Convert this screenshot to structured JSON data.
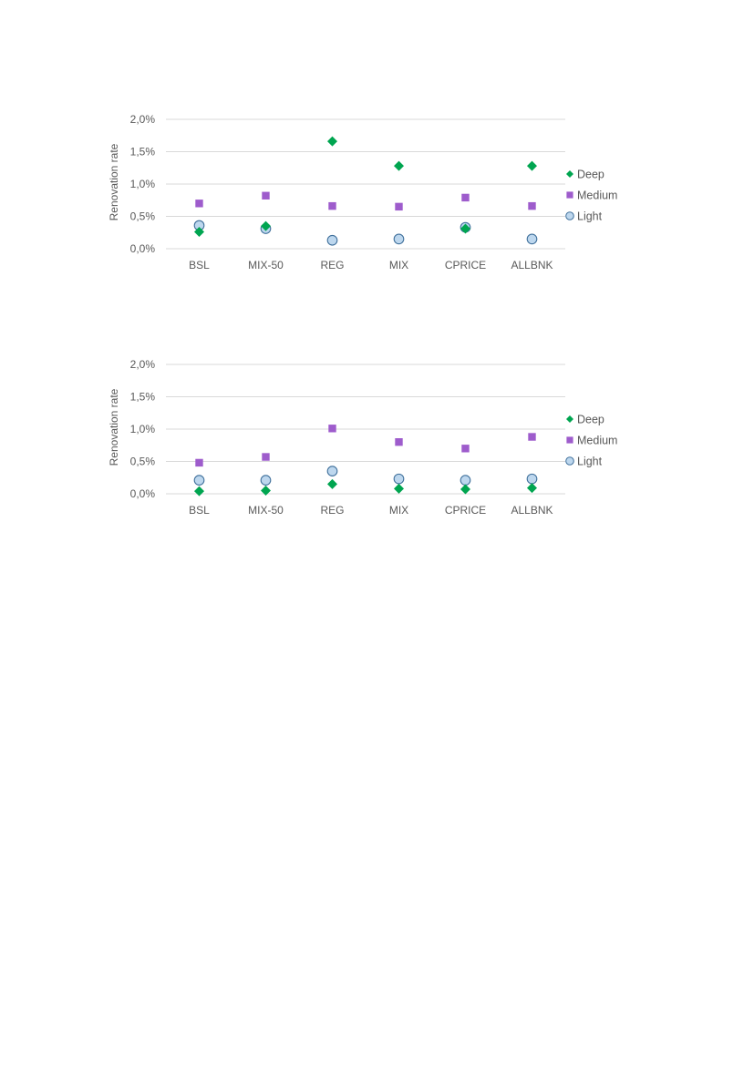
{
  "chart_data": [
    {
      "type": "scatter",
      "ylabel": "Renovation rate",
      "categories": [
        "BSL",
        "MIX-50",
        "REG",
        "MIX",
        "CPRICE",
        "ALLBNK"
      ],
      "ylim": [
        0,
        2.0
      ],
      "yticks": [
        "0,0%",
        "0,5%",
        "1,0%",
        "1,5%",
        "2,0%"
      ],
      "grid": true,
      "legend_position": "right",
      "series": [
        {
          "name": "Deep",
          "marker": "diamond",
          "color": "#00a550",
          "values": [
            0.26,
            0.35,
            1.66,
            1.28,
            0.31,
            1.28
          ]
        },
        {
          "name": "Medium",
          "marker": "square",
          "color": "#9e5ccc",
          "values": [
            0.7,
            0.82,
            0.66,
            0.65,
            0.79,
            0.66
          ]
        },
        {
          "name": "Light",
          "marker": "circle",
          "color": "#bdd7ee",
          "stroke": "#41719c",
          "values": [
            0.36,
            0.31,
            0.13,
            0.15,
            0.33,
            0.15
          ]
        }
      ]
    },
    {
      "type": "scatter",
      "ylabel": "Renovation rate",
      "categories": [
        "BSL",
        "MIX-50",
        "REG",
        "MIX",
        "CPRICE",
        "ALLBNK"
      ],
      "ylim": [
        0,
        2.0
      ],
      "yticks": [
        "0,0%",
        "0,5%",
        "1,0%",
        "1,5%",
        "2,0%"
      ],
      "grid": true,
      "legend_position": "right",
      "series": [
        {
          "name": "Deep",
          "marker": "diamond",
          "color": "#00a550",
          "values": [
            0.04,
            0.05,
            0.15,
            0.08,
            0.07,
            0.09
          ]
        },
        {
          "name": "Medium",
          "marker": "square",
          "color": "#9e5ccc",
          "values": [
            0.48,
            0.57,
            1.01,
            0.8,
            0.7,
            0.88
          ]
        },
        {
          "name": "Light",
          "marker": "circle",
          "color": "#bdd7ee",
          "stroke": "#41719c",
          "values": [
            0.21,
            0.21,
            0.35,
            0.23,
            0.21,
            0.23
          ]
        }
      ]
    }
  ]
}
